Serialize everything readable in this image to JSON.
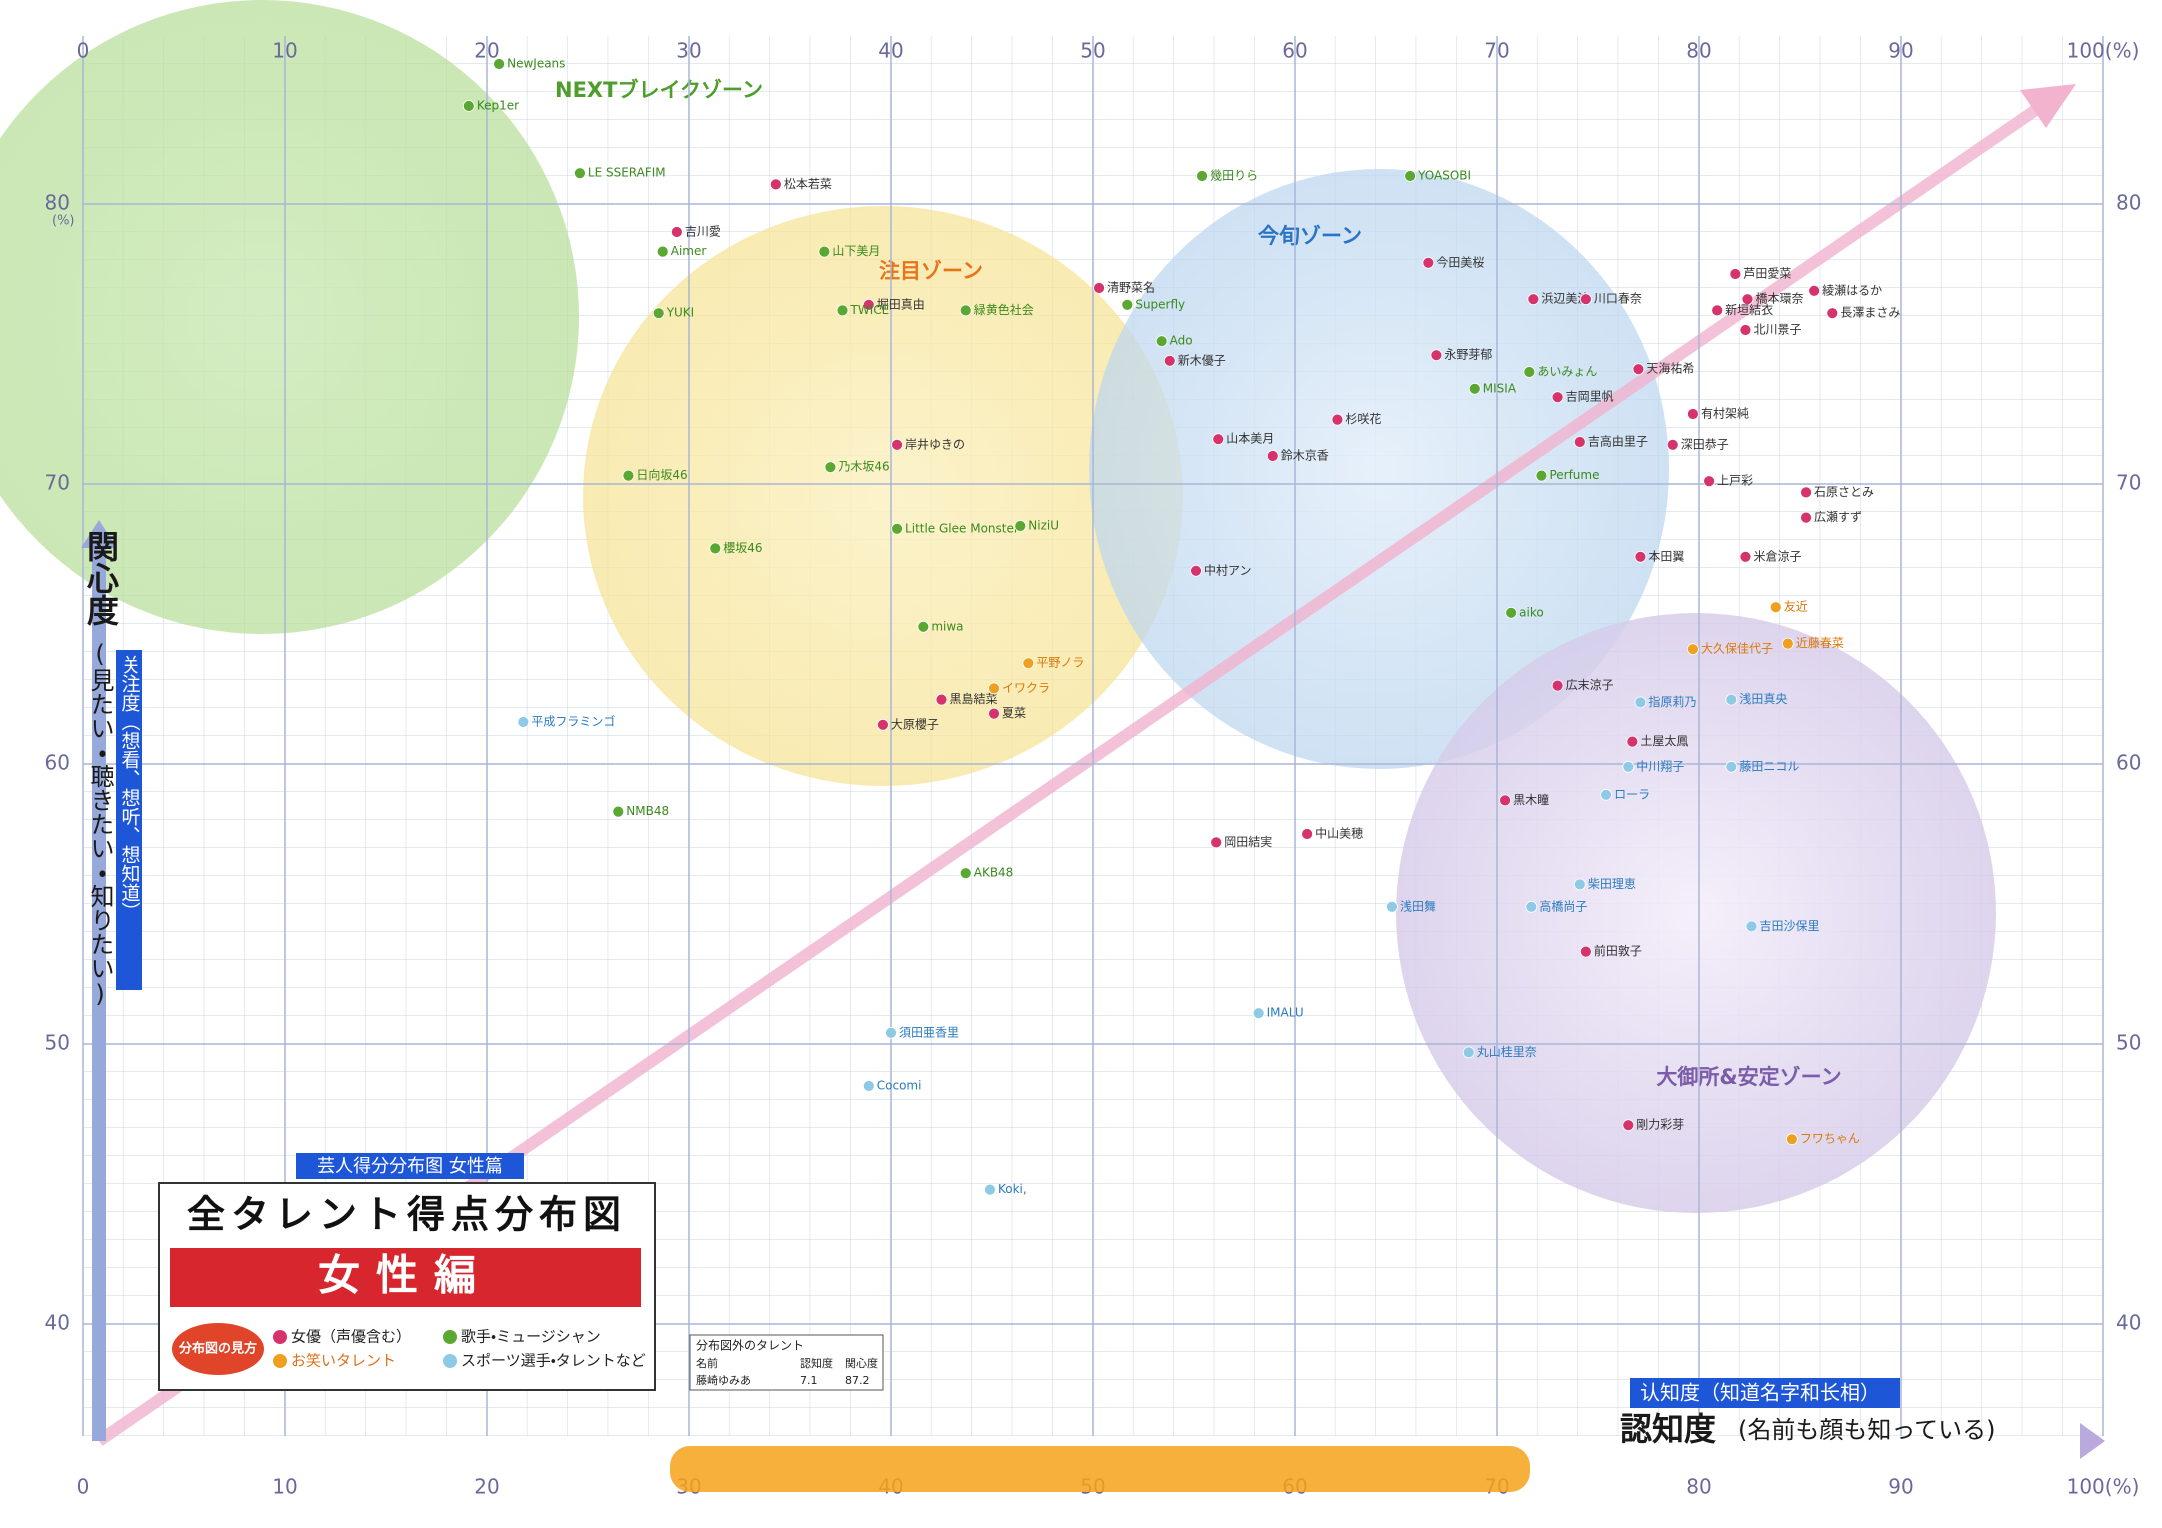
{
  "chart_data": {
    "type": "scatter",
    "title": "全タレント得点分布図",
    "subtitle": "女性編",
    "translated_title": "芸人得分分布图 女性篇",
    "x_label": "認知度",
    "x_label_note": "(名前も顔も知っている)",
    "x_label_translation": "认知度（知道名字和长相）",
    "y_label": "関心度",
    "y_label_note": "(見たい・聴きたい・知りたい)",
    "y_label_translation": "关注度（想看、想听、想知道）",
    "y_unit": "(%)",
    "xlim": [
      0,
      100
    ],
    "ylim": [
      36,
      86
    ],
    "xticks": [
      0,
      10,
      20,
      30,
      40,
      50,
      60,
      70,
      80,
      90,
      {
        "value": 100,
        "label": "100(%)"
      }
    ],
    "yticks": [
      40,
      50,
      60,
      70,
      80
    ],
    "grid": true,
    "legend_title": "分布図の見方",
    "zones": [
      "NEXTブレイクゾーン",
      "注目ゾーン",
      "今旬ゾーン",
      "大御所&安定ゾーン"
    ],
    "outside_table": {
      "title": "分布図外のタレント",
      "header": [
        "名前",
        "認知度",
        "関心度"
      ],
      "rows": [
        [
          "藤崎ゆみあ",
          7.1,
          87.2
        ]
      ]
    },
    "series": [
      {
        "name": "女優（声優含む）",
        "color": "#d6336c",
        "label_color": "#333333",
        "labels": [
          "松本若菜",
          "今田美桜",
          "芦田愛菜",
          "綾瀬はるか",
          "長澤まさみ",
          "橋本環奈",
          "新垣結衣",
          "北川景子",
          "石原さとみ",
          "広瀬すず",
          "米倉涼子",
          "天海祐希",
          "有村架純",
          "深田恭子",
          "上戸彩",
          "本田翼",
          "吉高由里子",
          "吉岡里帆",
          "浜辺美波",
          "川口春奈",
          "永野芽郁",
          "杉咲花",
          "新木優子",
          "清野菜名",
          "中村アン",
          "山本美月",
          "鈴木京香",
          "広末涼子",
          "土屋太鳳",
          "黒木瞳",
          "前田敦子",
          "剛力彩芽",
          "中山美穂",
          "岡田結実",
          "吉川愛",
          "堀田真由",
          "岸井ゆきの",
          "黒島結菜",
          "夏菜",
          "大原櫻子"
        ],
        "x": [
          34.3,
          66.6,
          81.8,
          85.7,
          86.6,
          82.4,
          80.9,
          82.3,
          85.3,
          85.3,
          82.3,
          77.0,
          79.7,
          78.7,
          80.5,
          77.1,
          74.1,
          73.0,
          71.8,
          74.4,
          67.0,
          62.1,
          53.8,
          50.3,
          55.1,
          56.2,
          58.9,
          73.0,
          76.7,
          70.4,
          74.4,
          76.5,
          60.6,
          56.1,
          29.4,
          38.9,
          40.3,
          42.5,
          45.1,
          39.6
        ],
        "values": [
          80.7,
          77.9,
          77.5,
          76.9,
          76.1,
          76.6,
          76.2,
          75.5,
          69.7,
          68.8,
          67.4,
          74.1,
          72.5,
          71.4,
          70.1,
          67.4,
          71.5,
          73.1,
          76.6,
          76.6,
          74.6,
          72.3,
          74.4,
          77.0,
          66.9,
          71.6,
          71.0,
          62.8,
          60.8,
          58.7,
          53.3,
          47.1,
          57.5,
          57.2,
          79.0,
          76.4,
          71.4,
          62.3,
          61.8,
          61.4
        ]
      },
      {
        "name": "歌手・ミュージシャン",
        "color": "#5aa832",
        "label_color": "#3a8a1e",
        "labels": [
          "YOASOBI",
          "幾田りら",
          "Ado",
          "Superfly",
          "MISIA",
          "aiko",
          "Perfume",
          "あいみょん",
          "TWICE",
          "YUKI",
          "Aimer",
          "AKB48",
          "NMB48",
          "NewJeans",
          "LE SSERAFIM",
          "Little Glee Monster",
          "miwa",
          "NiziU",
          "乃木坂46",
          "櫻坂46",
          "日向坂46",
          "Kep1er",
          "緑黄色社会",
          "山下美月"
        ],
        "x": [
          65.7,
          55.4,
          53.4,
          51.7,
          68.9,
          70.7,
          72.2,
          71.6,
          37.6,
          28.5,
          28.7,
          43.7,
          26.5,
          20.6,
          24.6,
          40.3,
          41.6,
          46.4,
          37.0,
          31.3,
          27.0,
          19.1,
          43.7,
          36.7
        ],
        "values": [
          81.0,
          81.0,
          75.1,
          76.4,
          73.4,
          65.4,
          70.3,
          74.0,
          76.2,
          76.1,
          78.3,
          56.1,
          58.3,
          85.0,
          81.1,
          68.4,
          64.9,
          68.5,
          70.6,
          67.7,
          70.3,
          83.5,
          76.2,
          78.3
        ]
      },
      {
        "name": "お笑いタレント",
        "color": "#f0a020",
        "label_color": "#d9780c",
        "labels": [
          "フワちゃん",
          "大久保佳代子",
          "近藤春菜",
          "友近",
          "平野ノラ",
          "イワクラ"
        ],
        "x": [
          84.6,
          79.7,
          84.4,
          83.8,
          46.8,
          45.1
        ],
        "values": [
          46.6,
          64.1,
          64.3,
          65.6,
          63.6,
          62.7
        ]
      },
      {
        "name": "スポーツ選手・タレントなど",
        "color": "#8ecae6",
        "label_color": "#2a7bbf",
        "labels": [
          "浅田真央",
          "吉田沙保里",
          "高橋尚子",
          "浅田舞",
          "丸山桂里奈",
          "柴田理恵",
          "中川翔子",
          "藤田ニコル",
          "指原莉乃",
          "ローラ",
          "Cocomi",
          "Koki,",
          "IMALU",
          "須田亜香里",
          "平成フラミンゴ"
        ],
        "x": [
          81.6,
          82.6,
          71.7,
          64.8,
          68.6,
          74.1,
          76.5,
          81.6,
          77.1,
          75.4,
          38.9,
          44.9,
          58.2,
          40.0,
          21.8
        ],
        "values": [
          62.3,
          54.2,
          54.9,
          54.9,
          49.7,
          55.7,
          59.9,
          59.9,
          62.2,
          58.9,
          48.5,
          44.8,
          51.1,
          50.4,
          61.5
        ]
      }
    ]
  }
}
